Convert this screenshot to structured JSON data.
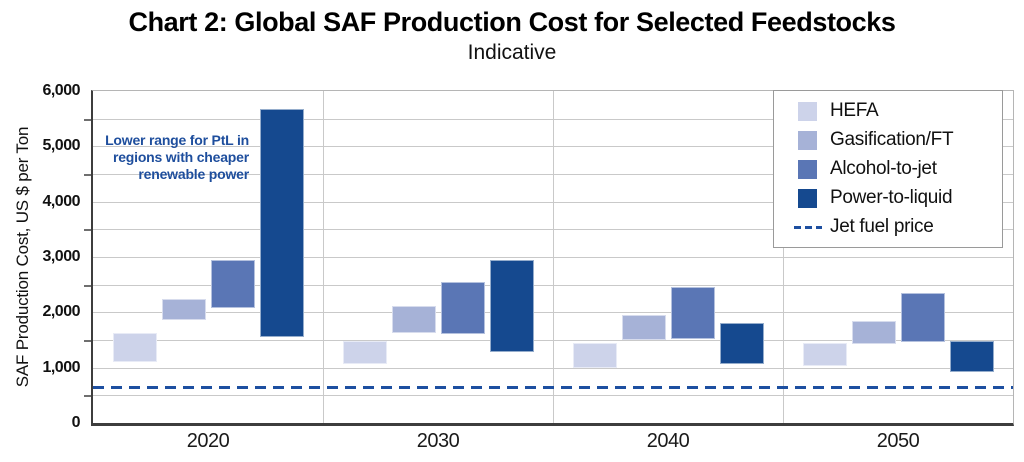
{
  "title": "Chart 2: Global SAF Production Cost for Selected Feedstocks",
  "subtitle": "Indicative",
  "annotation": "Lower range for PtL in\nregions with cheaper\nrenewable power",
  "chart_data": {
    "type": "bar",
    "subtype": "floating-range-columns",
    "title": "Chart 2: Global SAF Production Cost for Selected Feedstocks",
    "subtitle": "Indicative",
    "categories": [
      "2020",
      "2030",
      "2040",
      "2050"
    ],
    "series": [
      {
        "name": "HEFA",
        "color": "#cdd3ea",
        "ranges": [
          [
            1100,
            1630
          ],
          [
            1070,
            1490
          ],
          [
            1000,
            1450
          ],
          [
            1030,
            1450
          ]
        ]
      },
      {
        "name": "Gasification/FT",
        "color": "#a6b2d7",
        "ranges": [
          [
            1860,
            2240
          ],
          [
            1630,
            2110
          ],
          [
            1500,
            1950
          ],
          [
            1420,
            1840
          ]
        ]
      },
      {
        "name": "Alcohol-to-jet",
        "color": "#5a76b5",
        "ranges": [
          [
            2080,
            2940
          ],
          [
            1610,
            2550
          ],
          [
            1510,
            2450
          ],
          [
            1460,
            2350
          ]
        ]
      },
      {
        "name": "Power-to-liquid",
        "color": "#15498f",
        "ranges": [
          [
            1550,
            5680
          ],
          [
            1290,
            2950
          ],
          [
            1060,
            1810
          ],
          [
            930,
            1480
          ]
        ]
      }
    ],
    "jet_fuel_price": {
      "label": "Jet fuel price",
      "value": 650,
      "color": "#1d4fa0",
      "style": "dashed"
    },
    "xlabel": "",
    "ylabel": "SAF Production Cost, US $ per Ton",
    "ylim": [
      0,
      6000
    ],
    "ytick_step_label": 1000,
    "ytick_step_grid": 500,
    "yticks_labels": [
      "0",
      "1,000",
      "2,000",
      "3,000",
      "4,000",
      "5,000",
      "6,000"
    ],
    "grid": true,
    "legend_position": "top-right",
    "annotation": "Lower range for PtL in regions with cheaper renewable power"
  },
  "colors": {
    "gridline": "#c9c9c9",
    "axis": "#3d3d3d",
    "annotation_text": "#1e4e9d"
  }
}
